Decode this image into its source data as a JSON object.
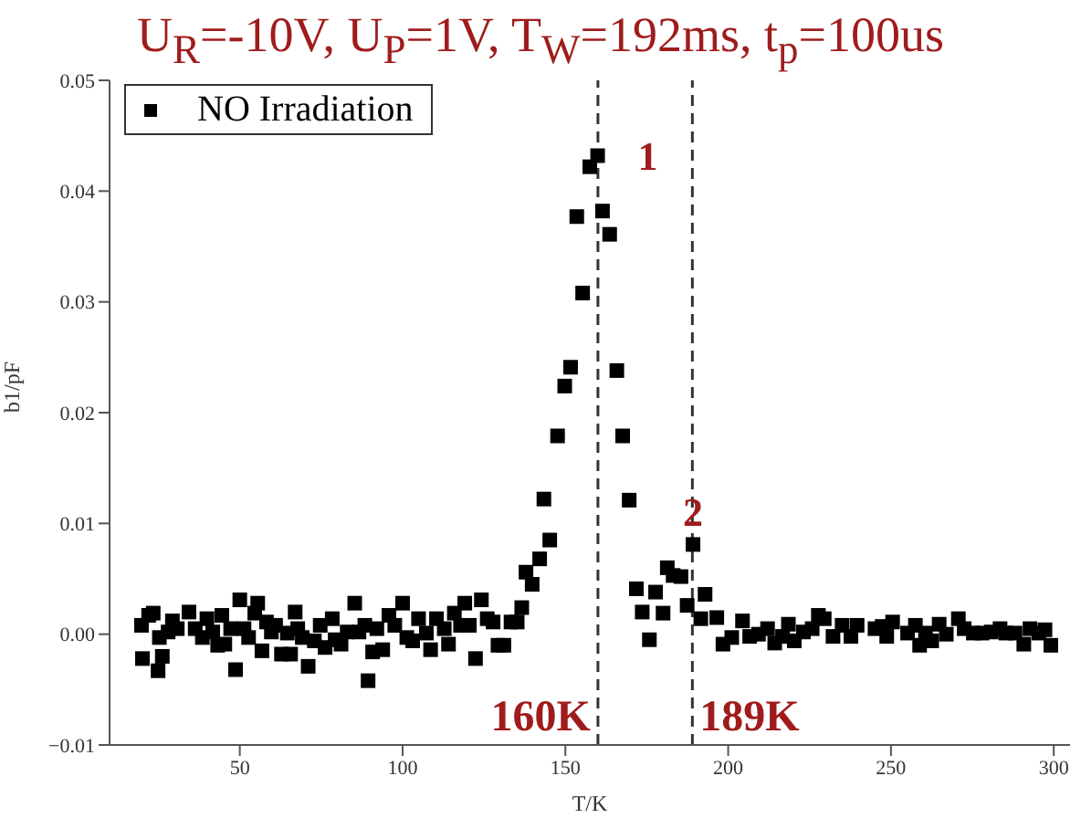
{
  "chart_data": {
    "type": "scatter",
    "title": "U$_{R}$=-10V, U$_{P}$=1V, T$_{W}$=192ms, t$_{p}$=100us",
    "xlabel": "T/K",
    "ylabel": "b1/pF",
    "xlim": [
      10,
      305
    ],
    "xticks": [
      50,
      100,
      150,
      200,
      250,
      300
    ],
    "ylim": [
      -0.01,
      0.05
    ],
    "yticks": [
      {
        "value": -0.01,
        "label": "−0.01"
      },
      {
        "value": 0,
        "label": "0.00"
      },
      0.01,
      0.02,
      0.03,
      0.04,
      0.05
    ],
    "legend": "top left",
    "marker": "square",
    "series": [
      {
        "name": "NO Irradiation",
        "color": "#000000",
        "x": [
          19.8,
          20.1,
          22,
          23.4,
          24.9,
          25.3,
          26.2,
          28,
          29.3,
          30.8,
          34.4,
          36.3,
          38.5,
          39.9,
          41.7,
          43.2,
          44.5,
          45.4,
          47.2,
          48.7,
          50,
          51.3,
          52.7,
          54.6,
          55.5,
          56.8,
          58.2,
          59.7,
          61,
          62.8,
          64.6,
          65.6,
          67,
          67.8,
          69.2,
          71,
          72.9,
          74.7,
          76.2,
          78.4,
          79.3,
          81.1,
          83,
          85.3,
          86.6,
          88.4,
          89.4,
          90.8,
          92.1,
          93.9,
          95.8,
          97.6,
          100,
          101.3,
          103.1,
          104.9,
          107.3,
          108.6,
          110.4,
          112.8,
          114.1,
          115.9,
          117.8,
          119.1,
          120.5,
          122.4,
          124.2,
          126,
          127.8,
          129.3,
          131.1,
          133.3,
          135.2,
          136.6,
          137.9,
          139.8,
          142.1,
          143.4,
          145.2,
          147.6,
          149.8,
          151.6,
          153.5,
          155.3,
          157.5,
          159.9,
          161.4,
          163.6,
          165.8,
          167.6,
          169.6,
          171.8,
          173.6,
          175.8,
          177.7,
          180,
          181.3,
          183.1,
          185.5,
          187.4,
          189.2,
          191.6,
          192.9,
          196.5,
          198.4,
          201.1,
          204.4,
          206.6,
          209.3,
          212.1,
          214.3,
          216.7,
          218.5,
          220.3,
          223.1,
          225.8,
          227.7,
          229.5,
          232.2,
          235,
          237.7,
          239.6,
          245.1,
          247.3,
          248.7,
          250.5,
          255.1,
          257.5,
          258.8,
          260.6,
          262.5,
          264.8,
          267,
          270.7,
          272.5,
          275.3,
          278,
          280.8,
          283.5,
          285.3,
          288.1,
          290.8,
          292.7,
          295.4,
          297.3,
          299.1
        ],
        "values": [
          0.0008,
          -0.0022,
          0.0017,
          0.0019,
          -0.0033,
          -0.0003,
          -0.002,
          0.0002,
          0.0012,
          0.0005,
          0.002,
          0.0005,
          -0.0003,
          0.0014,
          0.0002,
          -0.001,
          0.0017,
          -0.0009,
          0.0005,
          -0.0032,
          0.0031,
          0.0005,
          -0.0003,
          0.0019,
          0.0028,
          -0.0015,
          0.0011,
          0.0002,
          0.0008,
          -0.0018,
          0.0001,
          -0.0018,
          0.002,
          0.0005,
          -0.0003,
          -0.0029,
          -0.0006,
          0.0008,
          -0.0012,
          0.0014,
          -0.0005,
          -0.0009,
          0.0002,
          0.0028,
          0.0002,
          0.0008,
          -0.0042,
          -0.0016,
          0.0005,
          -0.0014,
          0.0017,
          0.0008,
          0.0028,
          -0.0003,
          -0.0006,
          0.0014,
          0.0001,
          -0.0014,
          0.0014,
          0.0005,
          -0.0009,
          0.0019,
          0.0008,
          0.0028,
          0.0008,
          -0.0022,
          0.0031,
          0.0014,
          0.0011,
          -0.001,
          -0.001,
          0.0011,
          0.0011,
          0.0024,
          0.0056,
          0.0045,
          0.0068,
          0.0122,
          0.0085,
          0.0179,
          0.0224,
          0.0241,
          0.0377,
          0.0308,
          0.0422,
          0.0432,
          0.0382,
          0.0361,
          0.0238,
          0.0179,
          0.0121,
          0.0041,
          0.002,
          -0.0005,
          0.0038,
          0.0019,
          0.006,
          0.0053,
          0.0052,
          0.0026,
          0.0081,
          0.0014,
          0.0036,
          0.0015,
          -0.0009,
          -0.0003,
          0.0012,
          -0.0002,
          0,
          0.0005,
          -0.0008,
          -0.0002,
          0.0009,
          -0.0006,
          0.0002,
          0.0005,
          0.0017,
          0.0014,
          -0.0002,
          0.0008,
          -0.0002,
          0.0008,
          0.0005,
          0.0007,
          -0.0002,
          0.0011,
          0.0001,
          0.0008,
          -0.001,
          0.0001,
          -0.0006,
          0.0009,
          0,
          0.0014,
          0.0005,
          0.0001,
          0.0001,
          0.0002,
          0.0005,
          0.0001,
          0.0001,
          -0.0009,
          0.0005,
          0.0001,
          0.0004,
          -0.001
        ]
      }
    ],
    "ref_lines": [
      {
        "axis": "x",
        "value": 160,
        "label": "160K",
        "color": "#333333",
        "line_style": "dashed"
      },
      {
        "axis": "x",
        "value": 189,
        "label": "189K",
        "color": "#333333",
        "line_style": "dashed"
      }
    ],
    "annotations": [
      {
        "text": "1",
        "x": 159.9,
        "y": 0.0432
      },
      {
        "text": "2",
        "x": 189.2,
        "y": 0.0081
      }
    ]
  }
}
